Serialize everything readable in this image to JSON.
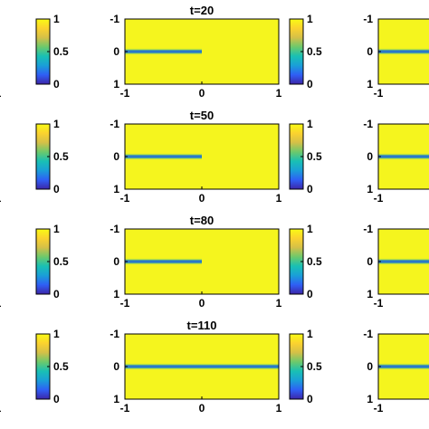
{
  "chart_data": {
    "type": "heatmap",
    "colormap": [
      "#3d26a8",
      "#2f5ff5",
      "#1a9fd8",
      "#19c0b4",
      "#6cc96c",
      "#d4c048",
      "#fbd22f",
      "#f9fb14"
    ],
    "background_value_color": "#f5f51e",
    "crack_color": "#2b78c9",
    "colorbar_ticks": [
      "1",
      "0.5",
      "0"
    ],
    "x_ticks": [
      "-1",
      "0",
      "1"
    ],
    "y_ticks": [
      "-1",
      "0",
      "1"
    ],
    "panels": [
      {
        "row": 0,
        "title": "t=20",
        "crack_x_end": 0
      },
      {
        "row": 1,
        "title": "t=50",
        "crack_x_end": 0
      },
      {
        "row": 2,
        "title": "t=80",
        "crack_x_end": 0
      },
      {
        "row": 3,
        "title": "t=110",
        "crack_x_end": 1
      }
    ]
  }
}
